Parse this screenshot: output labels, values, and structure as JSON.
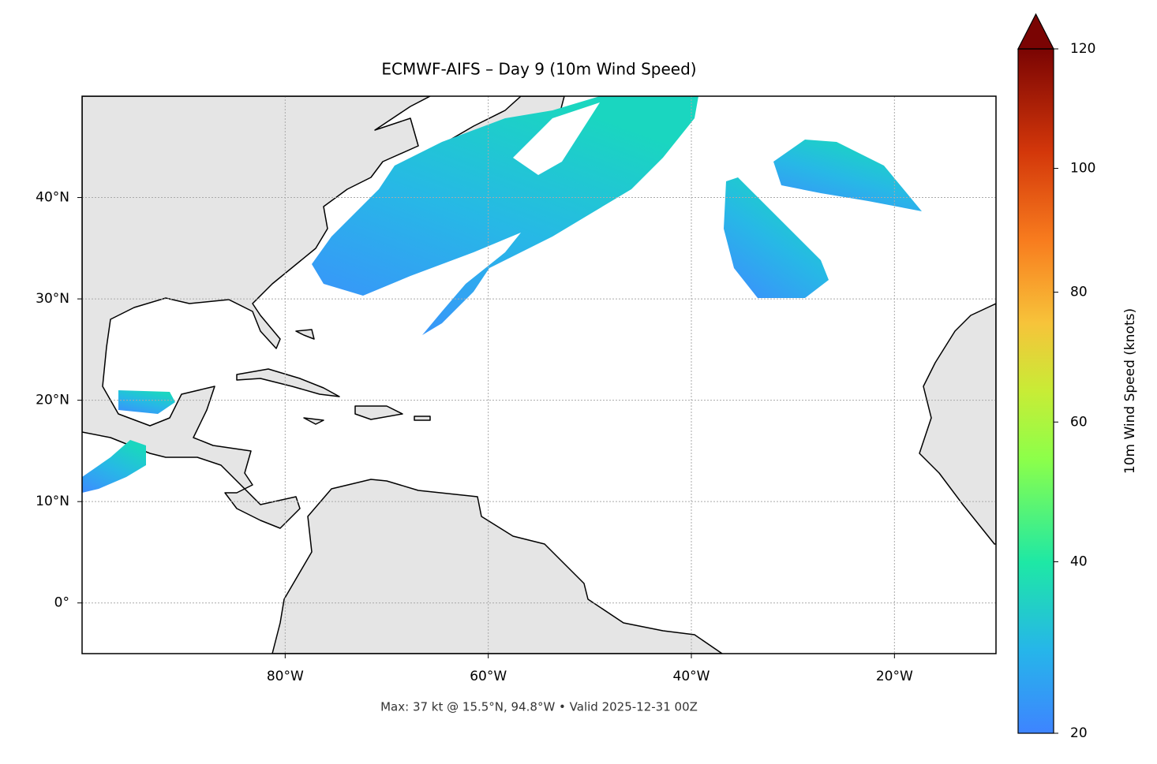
{
  "title": "ECMWF-AIFS – Day 9 (10m Wind Speed)",
  "map": {
    "xlim": [
      -100,
      -10
    ],
    "ylim": [
      -5,
      50
    ],
    "xticks": [
      {
        "value": -80,
        "label": "80°W"
      },
      {
        "value": -60,
        "label": "60°W"
      },
      {
        "value": -40,
        "label": "40°W"
      },
      {
        "value": -20,
        "label": "20°W"
      }
    ],
    "yticks": [
      {
        "value": 0,
        "label": "0°"
      },
      {
        "value": 10,
        "label": "10°N"
      },
      {
        "value": 20,
        "label": "20°N"
      },
      {
        "value": 30,
        "label": "30°N"
      },
      {
        "value": 40,
        "label": "40°N"
      }
    ],
    "grid": true
  },
  "colorbar": {
    "label": "10m Wind Speed (knots)",
    "lim": [
      20,
      120
    ],
    "ticks": [
      20,
      40,
      60,
      80,
      100,
      120
    ],
    "extend": "max"
  },
  "footer": "Max: 37 kt @ 15.5°N, 94.8°W • Valid 2025-12-31 00Z"
}
